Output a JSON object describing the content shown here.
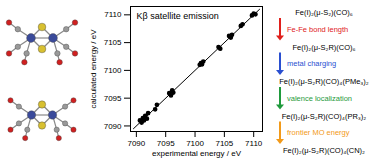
{
  "chart_data": {
    "type": "scatter",
    "title": "Kβ satellite emission",
    "x_label": "experimental energy / eV",
    "y_label": "calculated energy / eV",
    "x": [
      7090.6,
      7090.9,
      7091.1,
      7091.3,
      7091.5,
      7091.8,
      7092.0,
      7093.2,
      7093.5,
      7095.6,
      7095.9,
      7096.1,
      7096.3,
      7100.8,
      7101.0,
      7101.2,
      7101.4,
      7104.0,
      7104.3,
      7105.8,
      7106.1,
      7106.3,
      7107.8,
      7108.1,
      7109.7,
      7110.0,
      7110.3
    ],
    "values": [
      7091.0,
      7090.6,
      7091.4,
      7091.0,
      7091.8,
      7091.3,
      7092.3,
      7093.0,
      7093.8,
      7095.9,
      7095.5,
      7096.4,
      7096.0,
      7101.0,
      7101.3,
      7101.1,
      7101.6,
      7104.2,
      7103.9,
      7106.2,
      7105.9,
      7106.4,
      7108.0,
      7108.3,
      7109.9,
      7110.2,
      7110.1
    ],
    "fit": {
      "x": [
        7089.5,
        7111
      ],
      "values": [
        7089.5,
        7111
      ]
    },
    "xlim": [
      7089,
      7111.5
    ],
    "ylim": [
      7089,
      7111.5
    ],
    "xticks": [
      7090,
      7095,
      7100,
      7105,
      7110
    ],
    "yticks": [
      7090,
      7095,
      7100,
      7105,
      7110
    ],
    "color": "#000000",
    "marker": "circle",
    "grid": false
  },
  "diagram": {
    "compounds": [
      "Fe(I)₂(μ-S₂)(CO)₆",
      "Fe(I)₂(μ-S₂R)(CO)₆",
      "Fe(I)₂(μ-S₂R)(CO)₄(PMe₃)₂",
      "Fe(I)₂(μ-S₂R)(CO)₄(PR₃)₂",
      "Fe(I)₂(μ-S₂R)(CO)₄(CN)₂"
    ],
    "steps": [
      {
        "label": "Fe-Fe bond length",
        "color": "#e0201c"
      },
      {
        "label": "metal charging",
        "color": "#2a4fd0"
      },
      {
        "label": "valence localization",
        "color": "#1f9a3c"
      },
      {
        "label": "frontier MO energy",
        "color": "#f29a1a"
      }
    ]
  }
}
